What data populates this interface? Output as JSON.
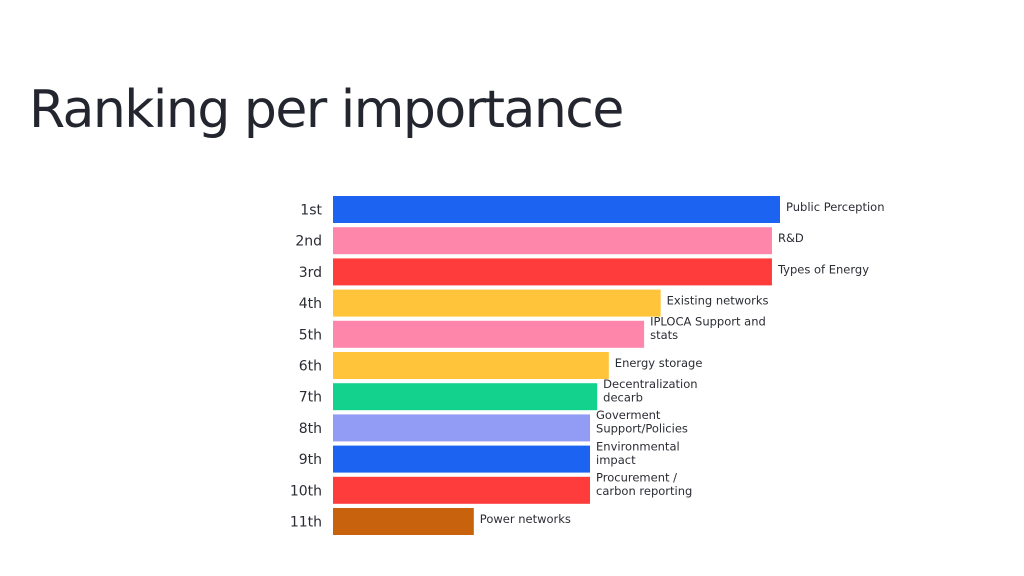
{
  "slide": {
    "title": "Ranking per importance"
  },
  "chart_data": {
    "type": "bar",
    "orientation": "horizontal",
    "categories": [
      "1st",
      "2nd",
      "3rd",
      "4th",
      "5th",
      "6th",
      "7th",
      "8th",
      "9th",
      "10th",
      "11th"
    ],
    "labels": [
      "Public Perception",
      "R&D",
      "Types of Energy",
      "Existing networks",
      "IPLOCA Support and stats",
      "Energy storage",
      "Decentralization decarb",
      "Goverment Support/Policies",
      "Environmental impact",
      "Procurement / carbon reporting",
      "Power networks"
    ],
    "values": [
      100,
      98.2,
      98.2,
      73.3,
      69.6,
      61.7,
      59.1,
      57.5,
      57.5,
      57.5,
      31.5
    ],
    "colors": [
      "#1c63f2",
      "#ff86ab",
      "#ff3c3c",
      "#ffc439",
      "#ff86ab",
      "#ffc439",
      "#13d28e",
      "#939cf5",
      "#1c63f2",
      "#ff3c3c",
      "#c9620c"
    ],
    "xlim": [
      0,
      100
    ],
    "axis_visible": false,
    "grid": false,
    "legend": "none"
  }
}
